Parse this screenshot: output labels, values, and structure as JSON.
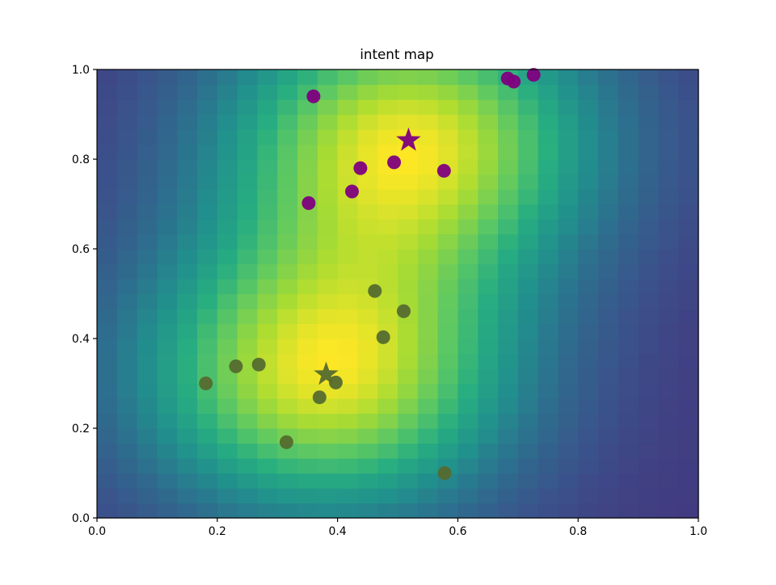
{
  "chart_data": {
    "type": "heatmap",
    "title": "intent map",
    "xlabel": "",
    "ylabel": "",
    "xlim": [
      0,
      1
    ],
    "ylim": [
      0,
      1
    ],
    "grid": false,
    "legend": false,
    "xticks": [
      "0.0",
      "0.2",
      "0.4",
      "0.6",
      "0.8",
      "1.0"
    ],
    "yticks": [
      "0.0",
      "0.2",
      "0.4",
      "0.6",
      "0.8",
      "1.0"
    ],
    "colormap": "viridis",
    "heatmap": {
      "grid_size": 30,
      "components": [
        {
          "center": [
            0.52,
            0.84
          ],
          "sigma": 0.22,
          "weight": 1.0
        },
        {
          "center": [
            0.38,
            0.32
          ],
          "sigma": 0.22,
          "weight": 1.0
        }
      ],
      "value_range": [
        0.18,
        1.0
      ]
    },
    "series": [
      {
        "color": "#800080",
        "marker": "circle",
        "points": [
          [
            0.36,
            0.94
          ],
          [
            0.683,
            0.98
          ],
          [
            0.693,
            0.973
          ],
          [
            0.726,
            0.988
          ],
          [
            0.438,
            0.78
          ],
          [
            0.494,
            0.793
          ],
          [
            0.577,
            0.774
          ],
          [
            0.424,
            0.728
          ],
          [
            0.352,
            0.702
          ]
        ],
        "center": {
          "marker": "star",
          "point": [
            0.518,
            0.842
          ]
        }
      },
      {
        "color": "#556b2f",
        "marker": "circle",
        "points": [
          [
            0.462,
            0.506
          ],
          [
            0.51,
            0.461
          ],
          [
            0.476,
            0.403
          ],
          [
            0.181,
            0.3
          ],
          [
            0.231,
            0.338
          ],
          [
            0.269,
            0.342
          ],
          [
            0.397,
            0.302
          ],
          [
            0.37,
            0.269
          ],
          [
            0.315,
            0.169
          ],
          [
            0.578,
            0.1
          ]
        ],
        "center": {
          "marker": "star",
          "point": [
            0.381,
            0.32
          ]
        }
      }
    ]
  }
}
